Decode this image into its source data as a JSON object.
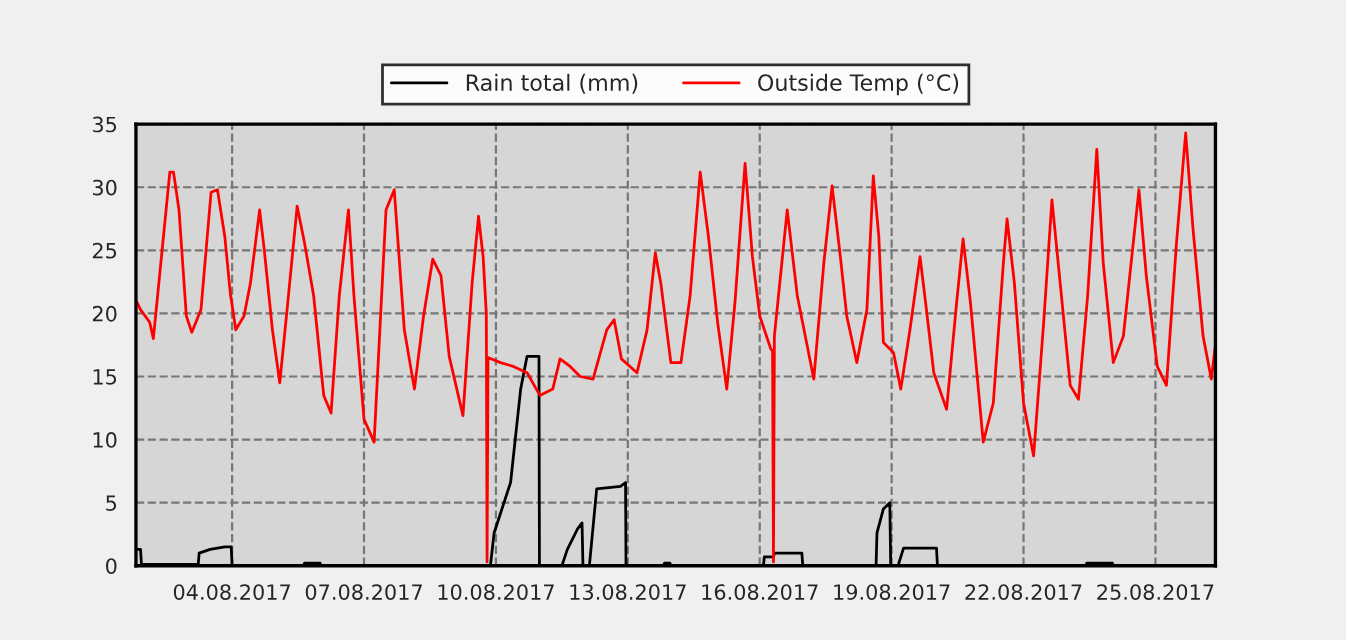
{
  "chart_data": {
    "type": "line",
    "legend": "top",
    "grid": true,
    "marker": "none",
    "line_style": "solid",
    "xlim": [
      "2017-08-01T19:30",
      "2017-08-26T08:45"
    ],
    "xticks": [
      {
        "value": "2017-08-04",
        "label": "04.08.2017"
      },
      {
        "value": "2017-08-07",
        "label": "07.08.2017"
      },
      {
        "value": "2017-08-10",
        "label": "10.08.2017"
      },
      {
        "value": "2017-08-13",
        "label": "13.08.2017"
      },
      {
        "value": "2017-08-16",
        "label": "16.08.2017"
      },
      {
        "value": "2017-08-19",
        "label": "19.08.2017"
      },
      {
        "value": "2017-08-22",
        "label": "22.08.2017"
      },
      {
        "value": "2017-08-25",
        "label": "25.08.2017"
      }
    ],
    "ylim": [
      0,
      35
    ],
    "yticks": [
      0,
      5,
      10,
      15,
      20,
      25,
      30,
      35
    ],
    "series": [
      {
        "name": "Rain total (mm)",
        "color": "#000000",
        "x": [
          "2017-08-01T20:00",
          "2017-08-01T22:00",
          "2017-08-01T22:30",
          "2017-08-03T05:30",
          "2017-08-03T06:00",
          "2017-08-03T12:00",
          "2017-08-03T20:00",
          "2017-08-03T23:30",
          "2017-08-04T00:00",
          "2017-08-05T15:00",
          "2017-08-05T15:30",
          "2017-08-06T00:00",
          "2017-08-06T00:30",
          "2017-08-09T21:00",
          "2017-08-09T23:00",
          "2017-08-10T08:00",
          "2017-08-10T13:30",
          "2017-08-10T17:00",
          "2017-08-10T23:30",
          "2017-08-10T23:45",
          "2017-08-11T12:00",
          "2017-08-11T15:00",
          "2017-08-11T20:30",
          "2017-08-11T23:00",
          "2017-08-11T23:30",
          "2017-08-12T03:00",
          "2017-08-12T07:00",
          "2017-08-12T20:00",
          "2017-08-12T22:45",
          "2017-08-12T23:00",
          "2017-08-13T19:30",
          "2017-08-13T20:00",
          "2017-08-13T23:00",
          "2017-08-13T23:30",
          "2017-08-16T02:00",
          "2017-08-16T02:30",
          "2017-08-16T07:30",
          "2017-08-16T08:00",
          "2017-08-16T23:00",
          "2017-08-16T23:30",
          "2017-08-18T15:30",
          "2017-08-18T16:00",
          "2017-08-18T19:30",
          "2017-08-18T23:00",
          "2017-08-18T23:30",
          "2017-08-19T03:30",
          "2017-08-19T06:30",
          "2017-08-20T00:30",
          "2017-08-20T01:00",
          "2017-08-23T10:00",
          "2017-08-23T10:30",
          "2017-08-24T00:30",
          "2017-08-24T01:00",
          "2017-08-26T08:30"
        ],
        "values": [
          1.3,
          1.3,
          0.1,
          0.1,
          1.0,
          1.3,
          1.5,
          1.5,
          0,
          0,
          0.2,
          0.2,
          0,
          0,
          2.6,
          6.6,
          14.0,
          16.6,
          16.6,
          0,
          0,
          1.3,
          2.9,
          3.4,
          0,
          0,
          6.1,
          6.3,
          6.6,
          0,
          0,
          0.2,
          0.2,
          0,
          0,
          0.7,
          0.7,
          1.0,
          1.0,
          0,
          0,
          2.6,
          4.5,
          5.0,
          0,
          0,
          1.4,
          1.4,
          0,
          0,
          0.2,
          0.2,
          0,
          0
        ]
      },
      {
        "name": "Outside Temp (°C)",
        "color": "#ff0000",
        "x": [
          "2017-08-01T20:00",
          "2017-08-01T22:00",
          "2017-08-02T03:00",
          "2017-08-02T05:00",
          "2017-08-02T14:00",
          "2017-08-02T16:00",
          "2017-08-02T19:00",
          "2017-08-02T23:00",
          "2017-08-03T02:00",
          "2017-08-03T07:00",
          "2017-08-03T12:30",
          "2017-08-03T16:00",
          "2017-08-03T20:00",
          "2017-08-03T23:00",
          "2017-08-04T02:00",
          "2017-08-04T06:30",
          "2017-08-04T10:00",
          "2017-08-04T15:00",
          "2017-08-04T17:30",
          "2017-08-04T22:00",
          "2017-08-05T02:00",
          "2017-08-05T06:00",
          "2017-08-05T11:30",
          "2017-08-05T15:30",
          "2017-08-05T20:30",
          "2017-08-06T02:00",
          "2017-08-06T06:00",
          "2017-08-06T10:30",
          "2017-08-06T15:30",
          "2017-08-06T18:30",
          "2017-08-07T00:00",
          "2017-08-07T05:30",
          "2017-08-07T12:00",
          "2017-08-07T16:30",
          "2017-08-07T22:00",
          "2017-08-08T03:30",
          "2017-08-08T08:30",
          "2017-08-08T13:30",
          "2017-08-08T18:00",
          "2017-08-08T22:30",
          "2017-08-09T06:00",
          "2017-08-09T11:00",
          "2017-08-09T14:30",
          "2017-08-09T17:00",
          "2017-08-09T18:45",
          "2017-08-09T19:10",
          "2017-08-09T19:40",
          "2017-08-10T02:30",
          "2017-08-10T09:30",
          "2017-08-10T17:00",
          "2017-08-11T00:00",
          "2017-08-11T07:00",
          "2017-08-11T11:00",
          "2017-08-11T16:30",
          "2017-08-11T22:00",
          "2017-08-12T05:00",
          "2017-08-12T12:30",
          "2017-08-12T16:30",
          "2017-08-12T20:30",
          "2017-08-13T05:00",
          "2017-08-13T10:30",
          "2017-08-13T15:00",
          "2017-08-13T18:00",
          "2017-08-13T23:30",
          "2017-08-14T05:00",
          "2017-08-14T10:00",
          "2017-08-14T15:30",
          "2017-08-14T20:00",
          "2017-08-15T01:00",
          "2017-08-15T06:00",
          "2017-08-15T10:30",
          "2017-08-15T16:00",
          "2017-08-15T20:00",
          "2017-08-16T00:00",
          "2017-08-16T06:00",
          "2017-08-16T07:00",
          "2017-08-16T07:30",
          "2017-08-16T08:00",
          "2017-08-16T15:00",
          "2017-08-16T20:30",
          "2017-08-17T05:30",
          "2017-08-17T11:00",
          "2017-08-17T15:30",
          "2017-08-17T20:00",
          "2017-08-17T23:30",
          "2017-08-18T05:00",
          "2017-08-18T10:30",
          "2017-08-18T14:00",
          "2017-08-18T17:00",
          "2017-08-18T19:30",
          "2017-08-19T01:00",
          "2017-08-19T05:00",
          "2017-08-19T10:00",
          "2017-08-19T15:30",
          "2017-08-19T19:00",
          "2017-08-19T23:00",
          "2017-08-20T06:00",
          "2017-08-20T11:30",
          "2017-08-20T15:00",
          "2017-08-20T19:00",
          "2017-08-21T02:00",
          "2017-08-21T07:30",
          "2017-08-21T13:00",
          "2017-08-21T15:00",
          "2017-08-21T19:00",
          "2017-08-22T00:00",
          "2017-08-22T05:30",
          "2017-08-22T11:00",
          "2017-08-22T15:30",
          "2017-08-22T20:00",
          "2017-08-23T01:30",
          "2017-08-23T06:00",
          "2017-08-23T11:00",
          "2017-08-23T16:00",
          "2017-08-23T19:30",
          "2017-08-24T01:00",
          "2017-08-24T06:30",
          "2017-08-24T10:00",
          "2017-08-24T15:00",
          "2017-08-24T19:00",
          "2017-08-25T01:00",
          "2017-08-25T06:00",
          "2017-08-25T11:30",
          "2017-08-25T16:30",
          "2017-08-25T20:30",
          "2017-08-26T02:00",
          "2017-08-26T06:30",
          "2017-08-26T08:30"
        ],
        "values": [
          20.9,
          20.3,
          19.3,
          18.0,
          31.2,
          31.2,
          28.2,
          19.8,
          18.5,
          20.3,
          29.6,
          29.8,
          26.1,
          21.6,
          18.7,
          19.8,
          22.4,
          28.2,
          25.1,
          18.7,
          14.5,
          20.3,
          28.5,
          25.6,
          21.4,
          13.5,
          12.1,
          21.4,
          28.2,
          21.4,
          11.6,
          9.8,
          28.2,
          29.8,
          18.7,
          14.0,
          19.8,
          24.3,
          23.0,
          16.6,
          11.9,
          22.4,
          27.7,
          24.5,
          20.0,
          0.3,
          16.5,
          16.1,
          15.8,
          15.3,
          13.5,
          14.0,
          16.4,
          15.8,
          15.0,
          14.8,
          18.7,
          19.5,
          16.4,
          15.3,
          18.7,
          24.8,
          22.4,
          16.1,
          16.1,
          21.4,
          31.2,
          26.1,
          19.3,
          14.0,
          20.9,
          31.9,
          24.5,
          19.8,
          17.2,
          17.0,
          0.3,
          18.2,
          28.2,
          21.4,
          14.8,
          24.0,
          30.1,
          24.5,
          19.8,
          16.1,
          20.3,
          30.9,
          26.1,
          17.7,
          16.9,
          14.0,
          18.7,
          24.5,
          20.3,
          15.3,
          12.4,
          20.9,
          25.9,
          20.9,
          9.8,
          12.9,
          24.0,
          27.5,
          22.4,
          12.9,
          8.7,
          19.3,
          29.0,
          22.4,
          14.3,
          13.2,
          21.4,
          33.0,
          24.0,
          16.1,
          18.2,
          23.0,
          29.8,
          23.0,
          15.8,
          14.3,
          25.6,
          34.3,
          26.7,
          18.2,
          14.8,
          17.2
        ]
      }
    ]
  }
}
